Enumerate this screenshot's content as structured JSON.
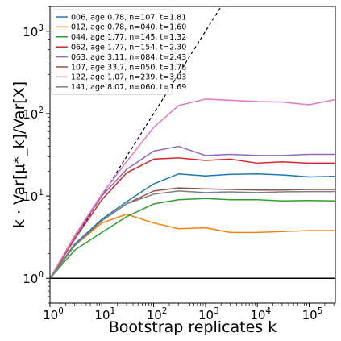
{
  "chart_data": {
    "type": "line",
    "xlabel": "Bootstrap replicates k",
    "ylabel": "k · Var[μ*_k]/Var[X]",
    "xscale": "log",
    "yscale": "log",
    "xlim": [
      1,
      320000
    ],
    "ylim": [
      0.5,
      2000
    ],
    "grid": false,
    "legend_position": "top-left",
    "x_ticks": [
      {
        "value": 1,
        "base": "10",
        "exp": "0"
      },
      {
        "value": 10,
        "base": "10",
        "exp": "1"
      },
      {
        "value": 100,
        "base": "10",
        "exp": "2"
      },
      {
        "value": 1000,
        "base": "10",
        "exp": "3"
      },
      {
        "value": 10000,
        "base": "10",
        "exp": "4"
      },
      {
        "value": 100000,
        "base": "10",
        "exp": "5"
      }
    ],
    "y_ticks": [
      {
        "value": 1,
        "base": "10",
        "exp": "0"
      },
      {
        "value": 10,
        "base": "10",
        "exp": "1"
      },
      {
        "value": 100,
        "base": "10",
        "exp": "2"
      },
      {
        "value": 1000,
        "base": "10",
        "exp": "3"
      }
    ],
    "x": [
      1,
      3,
      10,
      30,
      100,
      300,
      1000,
      3000,
      10000,
      30000,
      100000,
      320000
    ],
    "reference_lines": [
      {
        "name": "k",
        "style": "dashed",
        "color": "#000000",
        "x": [
          1,
          2000
        ],
        "y": [
          1,
          2000
        ]
      },
      {
        "name": "1",
        "style": "solid",
        "color": "#000000",
        "x": [
          1,
          320000
        ],
        "y": [
          1,
          1
        ]
      }
    ],
    "series": [
      {
        "name": "006, age:0.78, n=107, t=1.81",
        "color": "#1f77b4",
        "values": [
          1,
          2.6,
          5.2,
          8.5,
          14,
          18.5,
          17.5,
          18.3,
          18.5,
          18,
          17,
          17.3
        ]
      },
      {
        "name": "012, age:0.78, n=040, t=1.60",
        "color": "#ff7f0e",
        "values": [
          1,
          2.5,
          4.7,
          6.0,
          4.7,
          4.0,
          4.1,
          3.6,
          3.6,
          3.7,
          3.8,
          3.8
        ]
      },
      {
        "name": "044, age:1.77, n=145, t=1.32",
        "color": "#2ca02c",
        "values": [
          1,
          2.2,
          3.6,
          5.6,
          8.0,
          9.0,
          9.3,
          9.0,
          9.0,
          8.7,
          8.8,
          8.7
        ]
      },
      {
        "name": "062, age:1.77, n=154, t=2.30",
        "color": "#d62728",
        "values": [
          1,
          3.0,
          9.0,
          19,
          28,
          29,
          27,
          28,
          25,
          26,
          25,
          25
        ]
      },
      {
        "name": "063, age:3.11, n=084, t=2.43",
        "color": "#9467bd",
        "values": [
          1,
          3.2,
          10,
          21,
          35,
          40,
          31,
          32,
          31,
          31,
          32,
          32
        ]
      },
      {
        "name": "107, age:33.7, n=050, t=1.75",
        "color": "#8c564b",
        "values": [
          1,
          2.5,
          5.0,
          8.0,
          11.5,
          12.5,
          12.2,
          12.0,
          11.8,
          11.8,
          12.0,
          12.0
        ]
      },
      {
        "name": "122, age:1.07, n=239, t=3.03",
        "color": "#e377c2",
        "values": [
          1,
          3.3,
          10.5,
          26,
          68,
          125,
          150,
          145,
          140,
          138,
          128,
          148
        ]
      },
      {
        "name": "141, age:8.07, n=060, t=1.69",
        "color": "#7f7f7f",
        "values": [
          1,
          2.5,
          5.0,
          8.0,
          10.5,
          11.5,
          11.0,
          11.2,
          11.0,
          11.2,
          11.3,
          11.3
        ]
      }
    ]
  }
}
